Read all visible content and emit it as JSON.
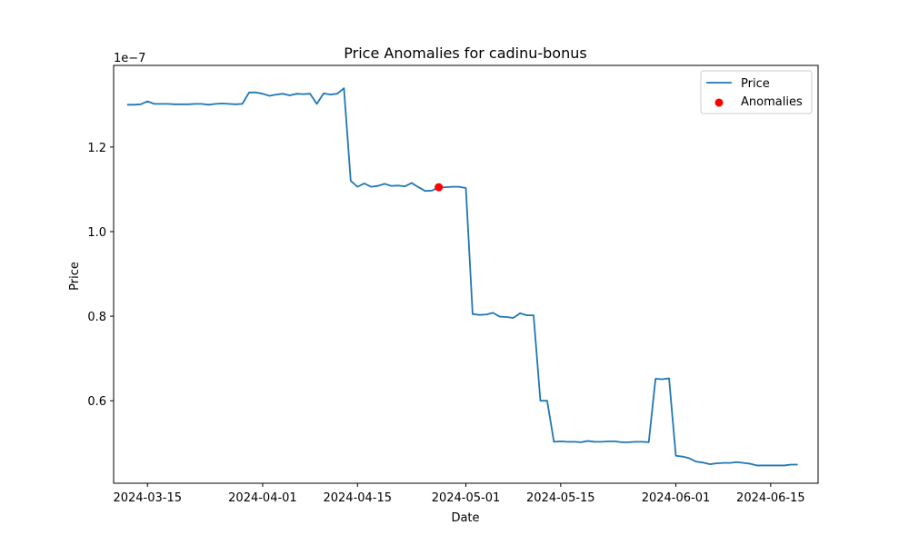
{
  "chart_data": {
    "type": "line",
    "title": "Price Anomalies for cadinu-bonus",
    "xlabel": "Date",
    "ylabel": "Price",
    "y_offset_label": "1e−7",
    "y_scale": 1e-07,
    "grid": false,
    "legend_position": "top-right",
    "xlim": [
      "2024-03-10",
      "2024-06-22"
    ],
    "ylim": [
      4.05e-08,
      1.393e-07
    ],
    "x_ticks": [
      {
        "date": "2024-03-15",
        "label": "2024-03-15"
      },
      {
        "date": "2024-04-01",
        "label": "2024-04-01"
      },
      {
        "date": "2024-04-15",
        "label": "2024-04-15"
      },
      {
        "date": "2024-05-01",
        "label": "2024-05-01"
      },
      {
        "date": "2024-05-15",
        "label": "2024-05-15"
      },
      {
        "date": "2024-06-01",
        "label": "2024-06-01"
      },
      {
        "date": "2024-06-15",
        "label": "2024-06-15"
      }
    ],
    "y_ticks": [
      {
        "value": 6e-08,
        "label": "0.6"
      },
      {
        "value": 8e-08,
        "label": "0.8"
      },
      {
        "value": 1e-07,
        "label": "1.0"
      },
      {
        "value": 1.2e-07,
        "label": "1.2"
      }
    ],
    "series": [
      {
        "name": "Price",
        "kind": "line",
        "color": "#1f77b4",
        "x": [
          "2024-03-12",
          "2024-03-13",
          "2024-03-14",
          "2024-03-15",
          "2024-03-16",
          "2024-03-17",
          "2024-03-18",
          "2024-03-19",
          "2024-03-20",
          "2024-03-21",
          "2024-03-22",
          "2024-03-23",
          "2024-03-24",
          "2024-03-25",
          "2024-03-26",
          "2024-03-27",
          "2024-03-28",
          "2024-03-29",
          "2024-03-30",
          "2024-03-31",
          "2024-04-01",
          "2024-04-02",
          "2024-04-03",
          "2024-04-04",
          "2024-04-05",
          "2024-04-06",
          "2024-04-07",
          "2024-04-08",
          "2024-04-09",
          "2024-04-10",
          "2024-04-11",
          "2024-04-12",
          "2024-04-13",
          "2024-04-14",
          "2024-04-15",
          "2024-04-16",
          "2024-04-17",
          "2024-04-18",
          "2024-04-19",
          "2024-04-20",
          "2024-04-21",
          "2024-04-22",
          "2024-04-23",
          "2024-04-24",
          "2024-04-25",
          "2024-04-26",
          "2024-04-27",
          "2024-04-28",
          "2024-04-29",
          "2024-04-30",
          "2024-05-01",
          "2024-05-02",
          "2024-05-03",
          "2024-05-04",
          "2024-05-05",
          "2024-05-06",
          "2024-05-07",
          "2024-05-08",
          "2024-05-09",
          "2024-05-10",
          "2024-05-11",
          "2024-05-12",
          "2024-05-13",
          "2024-05-14",
          "2024-05-15",
          "2024-05-16",
          "2024-05-17",
          "2024-05-18",
          "2024-05-19",
          "2024-05-20",
          "2024-05-21",
          "2024-05-22",
          "2024-05-23",
          "2024-05-24",
          "2024-05-25",
          "2024-05-26",
          "2024-05-27",
          "2024-05-28",
          "2024-05-29",
          "2024-05-30",
          "2024-05-31",
          "2024-06-01",
          "2024-06-02",
          "2024-06-03",
          "2024-06-04",
          "2024-06-05",
          "2024-06-06",
          "2024-06-07",
          "2024-06-08",
          "2024-06-09",
          "2024-06-10",
          "2024-06-11",
          "2024-06-12",
          "2024-06-13",
          "2024-06-14",
          "2024-06-15",
          "2024-06-16",
          "2024-06-17",
          "2024-06-18",
          "2024-06-19"
        ],
        "y": [
          1.3e-07,
          1.3e-07,
          1.301e-07,
          1.308e-07,
          1.302e-07,
          1.302e-07,
          1.302e-07,
          1.301e-07,
          1.301e-07,
          1.301e-07,
          1.302e-07,
          1.302e-07,
          1.3e-07,
          1.302e-07,
          1.303e-07,
          1.302e-07,
          1.301e-07,
          1.302e-07,
          1.329e-07,
          1.329e-07,
          1.326e-07,
          1.321e-07,
          1.324e-07,
          1.326e-07,
          1.322e-07,
          1.326e-07,
          1.325e-07,
          1.326e-07,
          1.302e-07,
          1.327e-07,
          1.324e-07,
          1.326e-07,
          1.339e-07,
          1.12e-07,
          1.106e-07,
          1.114e-07,
          1.106e-07,
          1.108e-07,
          1.113e-07,
          1.108e-07,
          1.109e-07,
          1.107e-07,
          1.115e-07,
          1.105e-07,
          1.096e-07,
          1.097e-07,
          1.105e-07,
          1.105e-07,
          1.106e-07,
          1.106e-07,
          1.103e-07,
          8.05e-08,
          8.03e-08,
          8.04e-08,
          8.08e-08,
          7.99e-08,
          7.98e-08,
          7.96e-08,
          8.07e-08,
          8.02e-08,
          8.02e-08,
          6e-08,
          6e-08,
          5.03e-08,
          5.04e-08,
          5.03e-08,
          5.03e-08,
          5.02e-08,
          5.05e-08,
          5.03e-08,
          5.03e-08,
          5.04e-08,
          5.04e-08,
          5.02e-08,
          5.02e-08,
          5.03e-08,
          5.03e-08,
          5.02e-08,
          6.52e-08,
          6.51e-08,
          6.53e-08,
          4.7e-08,
          4.68e-08,
          4.64e-08,
          4.56e-08,
          4.54e-08,
          4.5e-08,
          4.52e-08,
          4.53e-08,
          4.53e-08,
          4.55e-08,
          4.53e-08,
          4.51e-08,
          4.47e-08,
          4.47e-08,
          4.47e-08,
          4.47e-08,
          4.47e-08,
          4.49e-08,
          4.49e-08
        ]
      },
      {
        "name": "Anomalies",
        "kind": "scatter",
        "color": "#ff0000",
        "x": [
          "2024-04-27"
        ],
        "y": [
          1.105e-07
        ]
      }
    ]
  }
}
